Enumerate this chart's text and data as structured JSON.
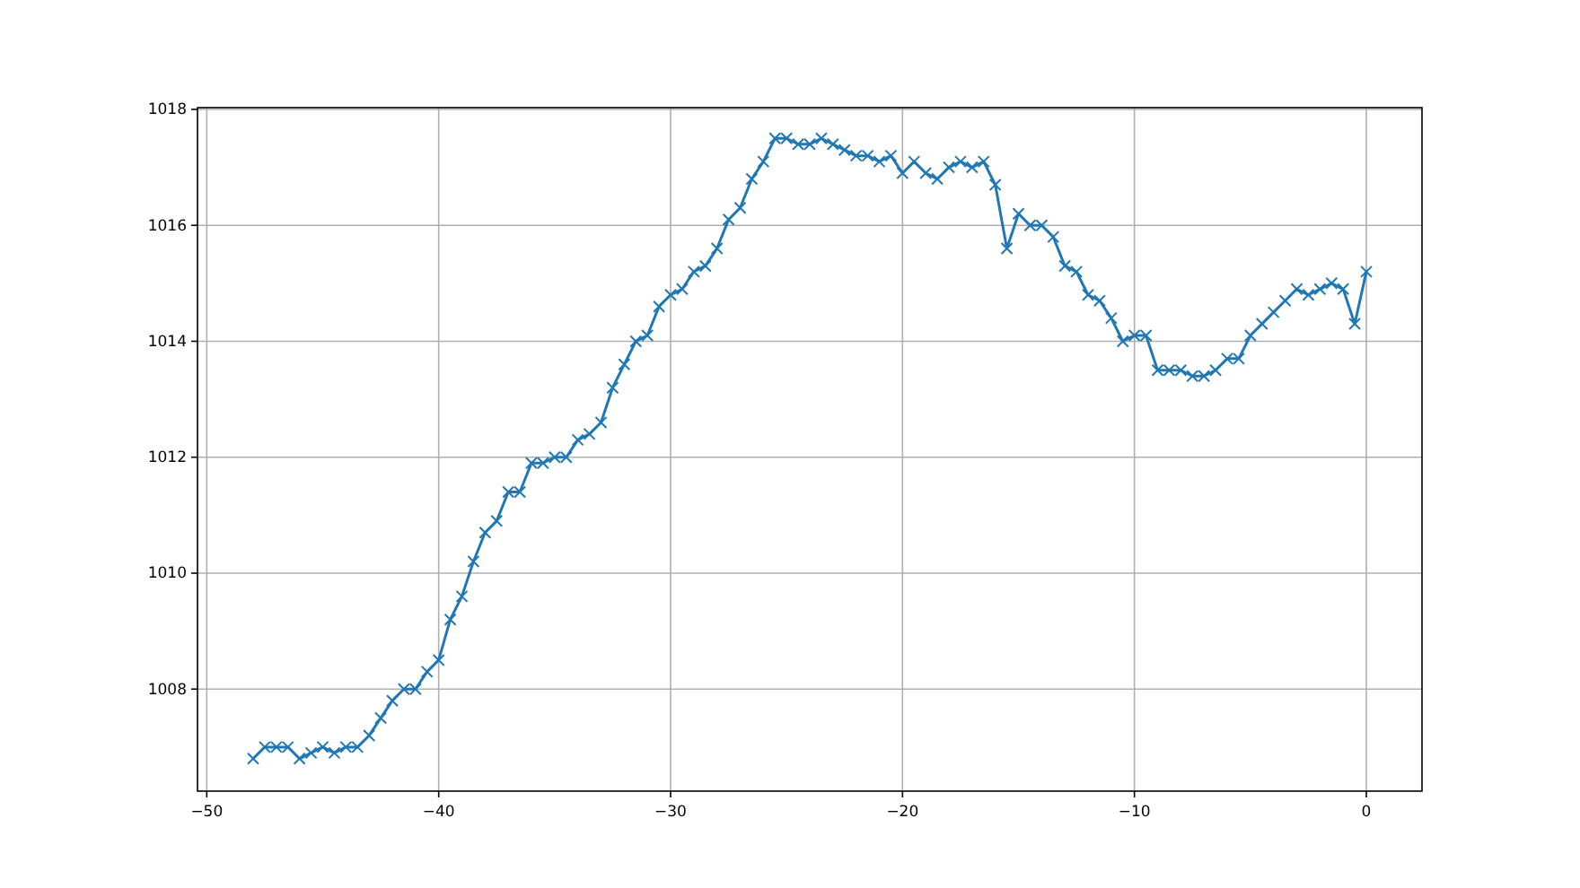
{
  "chart_data": {
    "type": "line",
    "x": [
      -48,
      -47.5,
      -47,
      -46.5,
      -46,
      -45.5,
      -45,
      -44.5,
      -44,
      -43.5,
      -43,
      -42.5,
      -42,
      -41.5,
      -41,
      -40.5,
      -40,
      -39.5,
      -39,
      -38.5,
      -38,
      -37.5,
      -37,
      -36.5,
      -36,
      -35.5,
      -35,
      -34.5,
      -34,
      -33.5,
      -33,
      -32.5,
      -32,
      -31.5,
      -31,
      -30.5,
      -30,
      -29.5,
      -29,
      -28.5,
      -28,
      -27.5,
      -27,
      -26.5,
      -26,
      -25.5,
      -25,
      -24.5,
      -24,
      -23.5,
      -23,
      -22.5,
      -22,
      -21.5,
      -21,
      -20.5,
      -20,
      -19.5,
      -19,
      -18.5,
      -18,
      -17.5,
      -17,
      -16.5,
      -16,
      -15.5,
      -15,
      -14.5,
      -14,
      -13.5,
      -13,
      -12.5,
      -12,
      -11.5,
      -11,
      -10.5,
      -10,
      -9.5,
      -9,
      -8.5,
      -8,
      -7.5,
      -7,
      -6.5,
      -6,
      -5.5,
      -5,
      -4.5,
      -4,
      -3.5,
      -3,
      -2.5,
      -2,
      -1.5,
      -1,
      -0.5,
      0
    ],
    "series": [
      {
        "color": "#1f77b4",
        "values": [
          1006.8,
          1007.0,
          1007.0,
          1007.0,
          1006.8,
          1006.9,
          1007.0,
          1006.9,
          1007.0,
          1007.0,
          1007.2,
          1007.5,
          1007.8,
          1008.0,
          1008.0,
          1008.3,
          1008.5,
          1009.2,
          1009.6,
          1010.2,
          1010.7,
          1010.9,
          1011.4,
          1011.4,
          1011.9,
          1011.9,
          1012.0,
          1012.0,
          1012.3,
          1012.4,
          1012.6,
          1013.2,
          1013.6,
          1014.0,
          1014.1,
          1014.6,
          1014.8,
          1014.9,
          1015.2,
          1015.3,
          1015.6,
          1016.1,
          1016.3,
          1016.8,
          1017.1,
          1017.5,
          1017.5,
          1017.4,
          1017.4,
          1017.5,
          1017.4,
          1017.3,
          1017.2,
          1017.2,
          1017.1,
          1017.2,
          1016.9,
          1017.1,
          1016.9,
          1016.8,
          1017.0,
          1017.1,
          1017.0,
          1017.1,
          1016.7,
          1015.6,
          1016.2,
          1016.0,
          1016.0,
          1015.8,
          1015.3,
          1015.2,
          1014.8,
          1014.7,
          1014.4,
          1014.0,
          1014.1,
          1014.1,
          1013.5,
          1013.5,
          1013.5,
          1013.4,
          1013.4,
          1013.5,
          1013.7,
          1013.7,
          1014.1,
          1014.3,
          1014.5,
          1014.7,
          1014.9,
          1014.8,
          1014.9,
          1015.0,
          1014.9,
          1014.3,
          1015.2
        ]
      }
    ],
    "xlim": [
      -50.4,
      2.4
    ],
    "ylim": [
      1006.24,
      1018.03
    ],
    "xticks": [
      -50,
      -40,
      -30,
      -20,
      -10,
      0
    ],
    "yticks": [
      1008,
      1010,
      1012,
      1014,
      1016,
      1018
    ],
    "grid": true,
    "marker": "cross",
    "line_style": "solid"
  }
}
